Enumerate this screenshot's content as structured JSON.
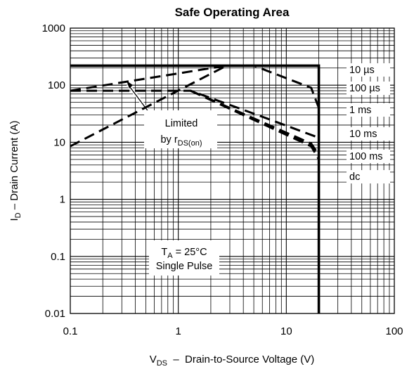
{
  "chart_data": {
    "type": "line",
    "title": "Safe Operating Area",
    "x_scale": "log",
    "y_scale": "log",
    "xlim": [
      0.1,
      100
    ],
    "ylim": [
      0.01,
      1000
    ],
    "grid": true,
    "x_ticks": [
      "0.1",
      "1",
      "10",
      "100"
    ],
    "y_ticks": [
      "0.01",
      "0.1",
      "1",
      "10",
      "100",
      "1000"
    ],
    "xlabel": {
      "pre": "V",
      "sub": "DS",
      "post": "  –  Drain-to-Source Voltage (V)"
    },
    "ylabel": {
      "pre": "I",
      "sub": "D",
      "post": " – Drain Current (A)"
    },
    "annotations": {
      "limited_line1": "Limited",
      "limited_line2_pre": "by r",
      "limited_line2_sub": "DS(on)",
      "cond_line1_pre": "T",
      "cond_line1_sub": "A",
      "cond_line1_post": " = 25°C",
      "cond_line2": "Single Pulse"
    },
    "series": [
      {
        "name": "Limited by rDS(on)",
        "style": "dashed",
        "points": [
          [
            0.1,
            8.5
          ],
          [
            2.8,
            220
          ]
        ]
      },
      {
        "name": "10 µs",
        "style": "solid",
        "points": [
          [
            0.1,
            220
          ],
          [
            20,
            220
          ],
          [
            20,
            0.01
          ]
        ]
      },
      {
        "name": "100 µs",
        "style": "dashed",
        "points": [
          [
            0.1,
            80
          ],
          [
            2.8,
            220
          ],
          [
            5,
            220
          ],
          [
            17,
            90
          ],
          [
            20,
            40
          ]
        ]
      },
      {
        "name": "1 ms",
        "style": "dashed",
        "points": [
          [
            0.1,
            80
          ],
          [
            1.3,
            80
          ],
          [
            6,
            28
          ],
          [
            20,
            12
          ]
        ]
      },
      {
        "name": "10 ms",
        "style": "dashed",
        "points": [
          [
            1.3,
            80
          ],
          [
            17,
            9.5
          ],
          [
            20,
            6
          ]
        ]
      },
      {
        "name": "100 ms",
        "style": "dashed",
        "points": [
          [
            1.3,
            80
          ],
          [
            17,
            9
          ],
          [
            20,
            5.5
          ]
        ]
      },
      {
        "name": "dc",
        "style": "dashed",
        "points": [
          [
            1.3,
            80
          ],
          [
            17,
            8.5
          ],
          [
            20,
            5
          ]
        ]
      }
    ],
    "series_labels": [
      "10 µs",
      "100 µs",
      "1 ms",
      "10 ms",
      "100 ms",
      "dc"
    ]
  }
}
